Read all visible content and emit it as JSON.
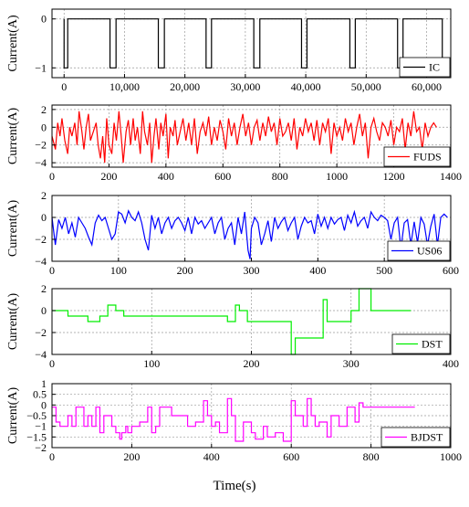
{
  "xlabel_common": "Time(s)",
  "chart_data": [
    {
      "type": "line",
      "panel": "IC",
      "ylabel": "Current(A)",
      "xlim": [
        -2000,
        64000
      ],
      "ylim": [
        -1.2,
        0.2
      ],
      "xticks": [
        0,
        10000,
        20000,
        30000,
        40000,
        50000,
        60000
      ],
      "xtick_labels": [
        "0",
        "10,000",
        "20,000",
        "30,000",
        "40,000",
        "50,000",
        "60,000"
      ],
      "yticks": [
        0,
        -1
      ],
      "ytick_labels": [
        "0",
        "−1"
      ],
      "legend": "bottom-right",
      "grid": true,
      "series": [
        {
          "name": "IC",
          "color": "#000000",
          "x": [
            0,
            0,
            600,
            600,
            7600,
            7600,
            8600,
            8600,
            15600,
            15600,
            16600,
            16600,
            23500,
            23500,
            24400,
            24400,
            31400,
            31400,
            32400,
            32400,
            39300,
            39300,
            40200,
            40200,
            47300,
            47300,
            48200,
            48200,
            55200,
            55200,
            56100,
            56100,
            62600,
            62600
          ],
          "y": [
            0,
            -1,
            -1,
            0,
            0,
            -1,
            -1,
            0,
            0,
            -1,
            -1,
            0,
            0,
            -1,
            -1,
            0,
            0,
            -1,
            -1,
            0,
            0,
            -1,
            -1,
            0,
            0,
            -1,
            -1,
            0,
            0,
            -1,
            -1,
            0,
            0,
            -1
          ]
        }
      ]
    },
    {
      "type": "line",
      "panel": "FUDS",
      "ylabel": "Current(A)",
      "xlim": [
        0,
        1400
      ],
      "ylim": [
        -4.5,
        2.5
      ],
      "xticks": [
        0,
        200,
        400,
        600,
        800,
        1000,
        1200,
        1400
      ],
      "xtick_labels": [
        "0",
        "200",
        "400",
        "600",
        "800",
        "1000",
        "1200",
        "1400"
      ],
      "yticks": [
        2,
        0,
        -2,
        -4
      ],
      "ytick_labels": [
        "2",
        "0",
        "−2",
        "−4"
      ],
      "legend": "bottom-right",
      "grid": true,
      "series": [
        {
          "name": "FUDS",
          "color": "#ff0000",
          "x": [
            0,
            12,
            20,
            28,
            35,
            45,
            55,
            62,
            70,
            80,
            88,
            95,
            105,
            112,
            120,
            128,
            135,
            145,
            155,
            162,
            170,
            178,
            185,
            192,
            200,
            210,
            218,
            226,
            235,
            243,
            250,
            260,
            268,
            276,
            285,
            292,
            300,
            310,
            318,
            325,
            335,
            343,
            350,
            358,
            365,
            375,
            382,
            390,
            400,
            408,
            415,
            425,
            432,
            440,
            450,
            460,
            470,
            480,
            490,
            500,
            510,
            520,
            530,
            540,
            550,
            560,
            570,
            580,
            590,
            600,
            610,
            620,
            630,
            640,
            650,
            660,
            670,
            680,
            690,
            700,
            710,
            720,
            730,
            740,
            750,
            760,
            770,
            780,
            790,
            800,
            810,
            820,
            830,
            840,
            850,
            860,
            870,
            880,
            890,
            900,
            910,
            920,
            930,
            940,
            950,
            960,
            970,
            980,
            990,
            1000,
            1010,
            1020,
            1030,
            1040,
            1050,
            1060,
            1070,
            1080,
            1090,
            1100,
            1110,
            1120,
            1130,
            1140,
            1150,
            1160,
            1170,
            1180,
            1190,
            1200,
            1210,
            1220,
            1230,
            1240,
            1250,
            1260,
            1270,
            1280,
            1290,
            1300,
            1310,
            1320,
            1330,
            1340,
            1350
          ],
          "y": [
            -1,
            -2.5,
            0.5,
            -1,
            1,
            -1.5,
            -3,
            0,
            -1,
            0.5,
            -2,
            1.8,
            -0.5,
            -2.5,
            0,
            1.5,
            -1.5,
            -0.5,
            0.5,
            -2,
            -3.5,
            -1,
            -4,
            1,
            -2,
            -3,
            0.5,
            -1.5,
            1.8,
            -1,
            -4,
            -0.5,
            0.8,
            -2,
            1,
            -1.5,
            0,
            -3,
            1.8,
            -0.5,
            -2,
            0.5,
            -4,
            -1,
            1,
            -2.5,
            0.5,
            -1,
            1.5,
            -3.5,
            0,
            -1,
            0.8,
            -2,
            -0.5,
            1,
            -1.5,
            0.5,
            -2,
            1,
            -3,
            -0.5,
            0.5,
            -1,
            1.2,
            -2,
            0,
            -1.5,
            0.8,
            -0.5,
            -2.5,
            1,
            -1,
            0.5,
            -2,
            0,
            1.5,
            -1,
            0.5,
            -2,
            0,
            0.8,
            -1.5,
            0.5,
            -1,
            1.2,
            -0.5,
            0.5,
            -2,
            1,
            -1,
            -0.5,
            0.5,
            -1.5,
            1,
            -2.5,
            0,
            -1,
            1,
            -0.5,
            0.5,
            -1.5,
            0.8,
            -2,
            0.5,
            -0.5,
            1,
            -3,
            0.5,
            -1,
            0,
            -1.5,
            1,
            -0.5,
            0.5,
            -2,
            0,
            1.5,
            -1,
            0.5,
            -3.5,
            0,
            1,
            -0.5,
            -1.5,
            0.5,
            0,
            -1,
            0.8,
            -2,
            0,
            -0.5,
            1,
            -2.5,
            0.5,
            -1,
            1.8,
            -0.5,
            0,
            -2.5,
            0.5,
            -1,
            0,
            0.5,
            0
          ],
          "legend": "FUDS"
        }
      ]
    },
    {
      "type": "line",
      "panel": "US06",
      "ylabel": "Current(A)",
      "xlim": [
        0,
        600
      ],
      "ylim": [
        -4,
        2
      ],
      "xticks": [
        0,
        100,
        200,
        300,
        400,
        500,
        600
      ],
      "xtick_labels": [
        "0",
        "100",
        "200",
        "300",
        "400",
        "500",
        "600"
      ],
      "yticks": [
        2,
        0,
        -2,
        -4
      ],
      "ytick_labels": [
        "2",
        "0",
        "−2",
        "−4"
      ],
      "legend": "bottom-right",
      "grid": true,
      "series": [
        {
          "name": "US06",
          "color": "#0000ff",
          "x": [
            0,
            5,
            10,
            15,
            20,
            25,
            30,
            35,
            40,
            45,
            50,
            55,
            60,
            65,
            70,
            75,
            80,
            85,
            90,
            95,
            100,
            105,
            110,
            115,
            120,
            125,
            130,
            135,
            140,
            145,
            150,
            155,
            160,
            165,
            170,
            175,
            180,
            185,
            190,
            195,
            200,
            205,
            210,
            215,
            220,
            225,
            230,
            235,
            240,
            245,
            250,
            255,
            260,
            265,
            270,
            275,
            280,
            285,
            290,
            295,
            298,
            300,
            305,
            310,
            315,
            320,
            325,
            330,
            335,
            340,
            345,
            350,
            355,
            360,
            365,
            370,
            375,
            380,
            385,
            390,
            395,
            400,
            405,
            410,
            415,
            420,
            425,
            430,
            435,
            440,
            445,
            450,
            455,
            460,
            465,
            470,
            475,
            480,
            485,
            490,
            495,
            500,
            505,
            510,
            515,
            520,
            525,
            530,
            535,
            540,
            545,
            550,
            555,
            560,
            565,
            570,
            575,
            580,
            585,
            590,
            595
          ],
          "y": [
            0,
            -2.5,
            -0.2,
            -1,
            0,
            -1.5,
            -0.5,
            -1.8,
            0,
            -0.5,
            -1,
            -1.8,
            -2.5,
            -0.5,
            0.2,
            -0.3,
            0,
            -1,
            -2,
            -1.5,
            0.5,
            0.3,
            -0.5,
            0.6,
            0,
            -0.3,
            0.5,
            -0.5,
            -2,
            -3,
            0.2,
            -1,
            0,
            -1.5,
            -0.5,
            0,
            -1,
            -0.3,
            0,
            -0.5,
            -1.2,
            0,
            -1.5,
            0,
            -0.6,
            -0.3,
            -1,
            -0.5,
            0,
            -1.5,
            -0.5,
            0,
            -2,
            -1,
            -0.5,
            -2.5,
            0,
            -1.5,
            0.5,
            -3,
            -3.8,
            -1,
            0,
            -0.5,
            -2.5,
            -1.5,
            -0.3,
            -2.2,
            0,
            -1,
            -0.4,
            0,
            -1.2,
            -0.5,
            0,
            -2,
            -0.8,
            0,
            -0.5,
            -0.3,
            -1.5,
            0.3,
            -0.8,
            0,
            -1,
            0,
            -0.6,
            -0.2,
            0,
            -1.2,
            0.2,
            -0.5,
            0.5,
            -0.8,
            -0.3,
            0,
            -1,
            0.5,
            0,
            -0.3,
            0.2,
            0,
            -0.3,
            -2,
            -0.5,
            0,
            -2.8,
            -0.5,
            -0.2,
            -2.5,
            -0.4,
            -2.3,
            0,
            -0.6,
            -2.5,
            -0.8,
            0.3,
            -2.5,
            0,
            0.3,
            0
          ]
        }
      ]
    },
    {
      "type": "line",
      "panel": "DST",
      "ylabel": "Current(A)",
      "xlim": [
        0,
        400
      ],
      "ylim": [
        -4,
        2
      ],
      "xticks": [
        0,
        100,
        200,
        300,
        400
      ],
      "xtick_labels": [
        "0",
        "100",
        "200",
        "300",
        "400"
      ],
      "yticks": [
        2,
        0,
        -2,
        -4
      ],
      "ytick_labels": [
        "2",
        "0",
        "−2",
        "−4"
      ],
      "legend": "bottom-right",
      "grid": true,
      "series": [
        {
          "name": "DST",
          "color": "#00ee00",
          "x": [
            0,
            16,
            16,
            36,
            36,
            48,
            48,
            56,
            56,
            64,
            64,
            72,
            72,
            176,
            176,
            184,
            184,
            188,
            188,
            196,
            196,
            240,
            240,
            244,
            244,
            252,
            252,
            272,
            272,
            276,
            276,
            280,
            280,
            300,
            300,
            308,
            308,
            312,
            312,
            320,
            320,
            360
          ],
          "y": [
            0,
            0,
            -0.5,
            -0.5,
            -1,
            -1,
            -0.5,
            -0.5,
            0.5,
            0.5,
            0,
            0,
            -0.5,
            -0.5,
            -1,
            -1,
            0.5,
            0.5,
            0,
            0,
            -1,
            -1,
            -4,
            -4,
            -2.5,
            -2.5,
            -2.5,
            -2.5,
            1,
            1,
            -1,
            -1,
            -1,
            -1,
            0,
            0,
            2,
            2,
            2,
            2,
            0,
            0
          ]
        }
      ]
    },
    {
      "type": "line",
      "panel": "BJDST",
      "ylabel": "Current(A)",
      "xlim": [
        0,
        1000
      ],
      "ylim": [
        -2,
        1
      ],
      "xticks": [
        0,
        200,
        400,
        600,
        800,
        1000
      ],
      "xtick_labels": [
        "0",
        "200",
        "400",
        "600",
        "800",
        "1000"
      ],
      "yticks": [
        1,
        0.5,
        0,
        -0.5,
        -1,
        -1.5,
        -2
      ],
      "ytick_labels": [
        "1",
        "0.5",
        "0",
        "−0.5",
        "−1",
        "−1.5",
        "−2"
      ],
      "legend": "bottom-right",
      "grid": true,
      "series": [
        {
          "name": "BJDST",
          "color": "#ff00ff",
          "x": [
            0,
            10,
            10,
            20,
            20,
            40,
            40,
            50,
            50,
            60,
            60,
            80,
            80,
            90,
            90,
            100,
            100,
            110,
            110,
            120,
            120,
            130,
            130,
            150,
            150,
            160,
            160,
            170,
            170,
            175,
            175,
            185,
            185,
            190,
            190,
            200,
            200,
            220,
            220,
            240,
            240,
            250,
            250,
            260,
            260,
            270,
            270,
            300,
            300,
            340,
            340,
            360,
            360,
            380,
            380,
            390,
            390,
            400,
            400,
            410,
            410,
            420,
            420,
            440,
            440,
            450,
            450,
            460,
            460,
            480,
            480,
            500,
            500,
            510,
            510,
            530,
            530,
            540,
            540,
            560,
            560,
            580,
            580,
            600,
            600,
            610,
            610,
            630,
            630,
            640,
            640,
            650,
            650,
            660,
            660,
            670,
            670,
            690,
            690,
            700,
            700,
            720,
            720,
            740,
            740,
            760,
            760,
            770,
            770,
            780,
            780,
            790,
            790,
            910
          ],
          "y": [
            -0.1,
            -0.1,
            -0.8,
            -0.8,
            -1,
            -1,
            -0.5,
            -0.5,
            -1,
            -1,
            -0.1,
            -0.1,
            -1,
            -1,
            -0.5,
            -0.5,
            -1,
            -1,
            -0.1,
            -0.1,
            -1.3,
            -1.3,
            -0.5,
            -0.5,
            -1,
            -1,
            -1.3,
            -1.3,
            -1.6,
            -1.6,
            -1.3,
            -1.3,
            -1,
            -1,
            -1.3,
            -1.3,
            -1,
            -1,
            -0.8,
            -0.8,
            -0.1,
            -0.1,
            -1.3,
            -1.3,
            -1,
            -1,
            -0.1,
            -0.1,
            -0.5,
            -0.5,
            -1,
            -1,
            -0.8,
            -0.8,
            0.2,
            0.2,
            -0.5,
            -0.5,
            -1,
            -1,
            -0.8,
            -0.8,
            -1.3,
            -1.3,
            0.3,
            0.3,
            -0.5,
            -0.5,
            -1.7,
            -1.7,
            -0.8,
            -0.8,
            -1.3,
            -1.3,
            -1.6,
            -1.6,
            -1,
            -1,
            -1.5,
            -1.5,
            -1.3,
            -1.3,
            -1.7,
            -1.7,
            0.2,
            0.2,
            -0.5,
            -0.5,
            -1,
            -1,
            0.3,
            0.3,
            -0.5,
            -0.5,
            -1,
            -1,
            -0.8,
            -0.8,
            -1.5,
            -1.5,
            -0.5,
            -0.5,
            -1,
            -1,
            -0.1,
            -0.1,
            -0.8,
            -0.8,
            0.1,
            0.1,
            -0.1,
            -0.1,
            -0.1,
            -0.1
          ]
        }
      ]
    }
  ]
}
